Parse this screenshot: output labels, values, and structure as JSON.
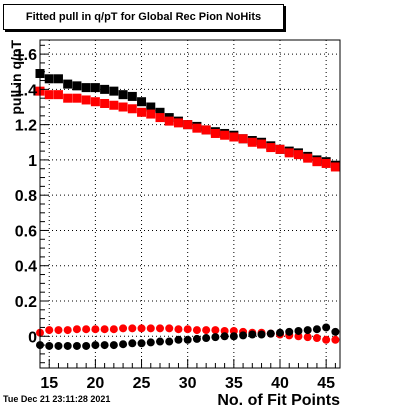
{
  "chart_data": {
    "type": "scatter",
    "title": "Fitted pull in q/pT for Global Rec Pion NoHits",
    "xlabel": "No. of Fit Points",
    "ylabel": "pull in q/pT",
    "xlim": [
      14,
      46.5
    ],
    "ylim": [
      -0.18,
      1.68
    ],
    "xticks": [
      15,
      20,
      25,
      30,
      35,
      40,
      45
    ],
    "yticks": [
      0,
      0.2,
      0.4,
      0.6,
      0.8,
      1,
      1.2,
      1.4,
      1.6
    ],
    "ytick_labels": [
      "0",
      "0.2",
      "0.4",
      "0.6",
      "0.8",
      "1",
      "1.2",
      "1.4",
      "1.6"
    ],
    "grid": true,
    "x": [
      14,
      15,
      16,
      17,
      18,
      19,
      20,
      21,
      22,
      23,
      24,
      25,
      26,
      27,
      28,
      29,
      30,
      31,
      32,
      33,
      34,
      35,
      36,
      37,
      38,
      39,
      40,
      41,
      42,
      43,
      44,
      45,
      46
    ],
    "series": [
      {
        "marker": "square",
        "color": "#000000",
        "values": [
          1.49,
          1.46,
          1.46,
          1.43,
          1.42,
          1.41,
          1.41,
          1.4,
          1.39,
          1.37,
          1.36,
          1.33,
          1.3,
          1.27,
          1.24,
          1.22,
          1.2,
          1.19,
          1.17,
          1.16,
          1.15,
          1.14,
          1.12,
          1.11,
          1.1,
          1.08,
          1.06,
          1.05,
          1.04,
          1.02,
          1.0,
          0.99,
          0.97
        ]
      },
      {
        "marker": "square",
        "color": "#ff0000",
        "values": [
          1.39,
          1.37,
          1.37,
          1.35,
          1.35,
          1.34,
          1.33,
          1.32,
          1.31,
          1.3,
          1.29,
          1.27,
          1.26,
          1.24,
          1.22,
          1.21,
          1.2,
          1.18,
          1.17,
          1.15,
          1.14,
          1.13,
          1.12,
          1.1,
          1.09,
          1.07,
          1.06,
          1.04,
          1.03,
          1.01,
          0.99,
          0.98,
          0.96
        ]
      },
      {
        "marker": "circle",
        "color": "#ff0000",
        "values": [
          0.02,
          0.035,
          0.035,
          0.035,
          0.04,
          0.04,
          0.04,
          0.04,
          0.04,
          0.045,
          0.045,
          0.045,
          0.045,
          0.045,
          0.045,
          0.04,
          0.04,
          0.035,
          0.035,
          0.035,
          0.03,
          0.03,
          0.025,
          0.02,
          0.02,
          0.015,
          0.01,
          0.005,
          0.0,
          -0.005,
          -0.01,
          -0.02,
          -0.02
        ]
      },
      {
        "marker": "circle",
        "color": "#000000",
        "values": [
          -0.05,
          -0.055,
          -0.055,
          -0.055,
          -0.055,
          -0.055,
          -0.05,
          -0.05,
          -0.05,
          -0.045,
          -0.04,
          -0.04,
          -0.035,
          -0.03,
          -0.03,
          -0.02,
          -0.02,
          -0.015,
          -0.01,
          -0.005,
          0.0,
          0.0,
          0.005,
          0.01,
          0.01,
          0.015,
          0.02,
          0.025,
          0.03,
          0.035,
          0.04,
          0.05,
          0.025
        ]
      }
    ]
  },
  "timestamp": "Tue Dec 21 23:11:28 2021"
}
